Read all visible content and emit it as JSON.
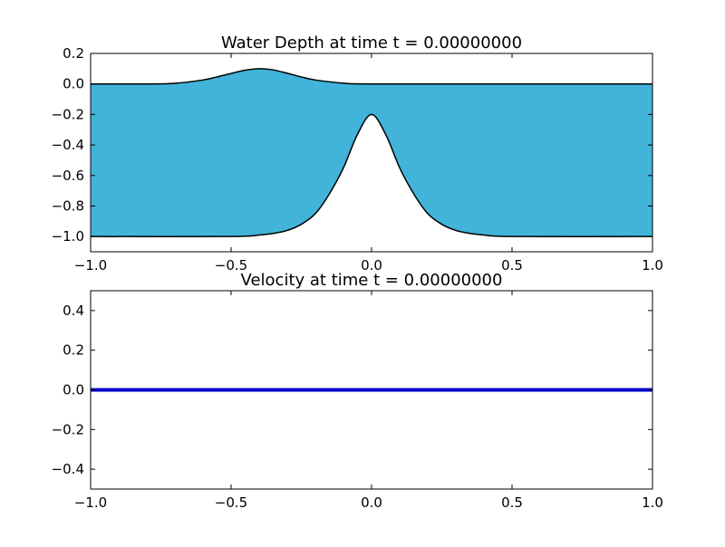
{
  "colors": {
    "water_fill": "#42b4da",
    "bathymetry_line": "#000000",
    "velocity_line": "#0000cc",
    "axes_frame": "#000000",
    "background": "#ffffff"
  },
  "chart_data": [
    {
      "type": "area",
      "title": "Water Depth at time t =     0.00000000",
      "xlabel": "",
      "ylabel": "",
      "xlim": [
        -1.0,
        1.0
      ],
      "ylim": [
        -1.1,
        0.2
      ],
      "grid": false,
      "xticks": [
        -1.0,
        -0.5,
        0.0,
        0.5,
        1.0
      ],
      "xtick_labels": [
        "−1.0",
        "−0.5",
        "0.0",
        "0.5",
        "1.0"
      ],
      "yticks": [
        0.2,
        0.0,
        -0.2,
        -0.4,
        -0.6,
        -0.8,
        -1.0
      ],
      "ytick_labels": [
        "0.2",
        "0.0",
        "−0.2",
        "−0.4",
        "−0.6",
        "−0.8",
        "−1.0"
      ],
      "series": [
        {
          "role": "surface",
          "x": [
            -1.0,
            -0.8,
            -0.7,
            -0.6,
            -0.55,
            -0.5,
            -0.45,
            -0.4,
            -0.35,
            -0.3,
            -0.25,
            -0.2,
            -0.1,
            0.0,
            0.5,
            1.0
          ],
          "y": [
            0.0,
            0.0,
            0.004,
            0.026,
            0.046,
            0.069,
            0.09,
            0.1,
            0.092,
            0.07,
            0.046,
            0.026,
            0.005,
            0.0,
            0.0,
            0.0
          ]
        },
        {
          "role": "bottom",
          "x": [
            -1.0,
            -0.5,
            -0.4,
            -0.35,
            -0.3,
            -0.25,
            -0.2,
            -0.15,
            -0.1,
            -0.05,
            0.0,
            0.05,
            0.1,
            0.15,
            0.2,
            0.25,
            0.3,
            0.35,
            0.4,
            0.5,
            1.0
          ],
          "y": [
            -1.0,
            -1.0,
            -0.99,
            -0.98,
            -0.96,
            -0.92,
            -0.85,
            -0.72,
            -0.55,
            -0.33,
            -0.2,
            -0.33,
            -0.55,
            -0.72,
            -0.85,
            -0.92,
            -0.96,
            -0.98,
            -0.99,
            -1.0,
            -1.0
          ]
        }
      ]
    },
    {
      "type": "line",
      "title": "Velocity at time t =     0.00000000",
      "xlabel": "",
      "ylabel": "",
      "xlim": [
        -1.0,
        1.0
      ],
      "ylim": [
        -0.5,
        0.5
      ],
      "grid": false,
      "xticks": [
        -1.0,
        -0.5,
        0.0,
        0.5,
        1.0
      ],
      "xtick_labels": [
        "−1.0",
        "−0.5",
        "0.0",
        "0.5",
        "1.0"
      ],
      "yticks": [
        0.4,
        0.2,
        0.0,
        -0.2,
        -0.4
      ],
      "ytick_labels": [
        "0.4",
        "0.2",
        "0.0",
        "−0.2",
        "−0.4"
      ],
      "series": [
        {
          "role": "velocity",
          "x": [
            -1.0,
            1.0
          ],
          "y": [
            0.0,
            0.0
          ]
        }
      ]
    }
  ]
}
